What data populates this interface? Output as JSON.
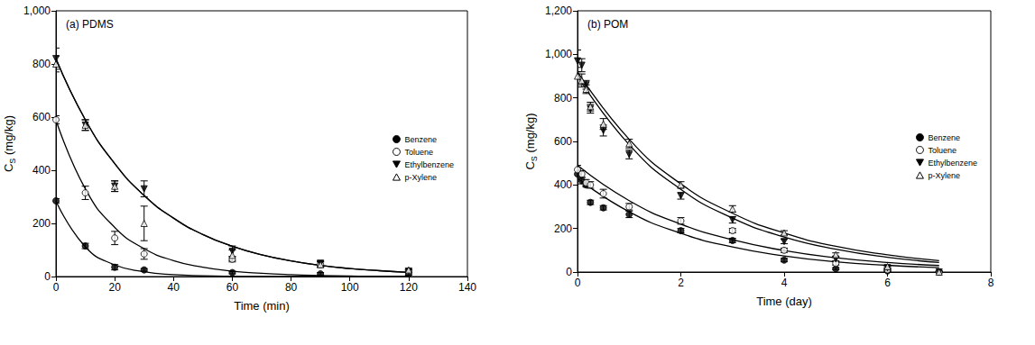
{
  "chart_data": [
    {
      "type": "scatter",
      "title": "(a) PDMS",
      "xlabel": "Time (min)",
      "ylabel": {
        "text": "CS (mg/kg)",
        "subscript": "S"
      },
      "xlim": [
        0,
        140
      ],
      "xticks": [
        0,
        20,
        40,
        60,
        80,
        100,
        120,
        140
      ],
      "ylim": [
        0,
        1000
      ],
      "yticks": [
        0,
        200,
        400,
        600,
        800,
        1000
      ],
      "legend": "right",
      "x": [
        0,
        10,
        20,
        30,
        60,
        90,
        120
      ],
      "fit_x": [
        0,
        10,
        20,
        30,
        40,
        50,
        60,
        70,
        80,
        90,
        100,
        110,
        120
      ],
      "series": [
        {
          "name": "Benzene",
          "color": "#000000",
          "marker": "circle",
          "values": [
            285,
            115,
            35,
            25,
            15,
            10,
            10
          ],
          "errors": [
            8,
            10,
            10,
            5,
            5,
            5,
            5
          ],
          "fit": [
            285,
            112,
            44,
            18,
            7,
            3,
            1,
            0,
            0,
            0,
            0,
            0,
            0
          ]
        },
        {
          "name": "Toluene",
          "color": "#000000",
          "marker": "open_circle",
          "values": [
            590,
            315,
            145,
            85,
            65,
            45,
            20
          ],
          "errors": [
            15,
            25,
            25,
            20,
            10,
            10,
            5
          ],
          "fit": [
            590,
            330,
            185,
            105,
            60,
            35,
            20,
            12,
            7,
            4,
            2,
            1,
            1
          ]
        },
        {
          "name": "Ethylbenzene",
          "color": "#000000",
          "marker": "triangle_down",
          "values": [
            820,
            570,
            340,
            330,
            95,
            50,
            20
          ],
          "errors": [
            40,
            20,
            20,
            30,
            20,
            10,
            5
          ],
          "fit": [
            820,
            590,
            425,
            305,
            220,
            158,
            114,
            82,
            59,
            42,
            30,
            22,
            16
          ]
        },
        {
          "name": "p-Xylene",
          "color": "#000000",
          "marker": "open_triangle",
          "values": [
            800,
            570,
            340,
            200,
            80,
            45,
            25
          ],
          "errors": [
            30,
            20,
            20,
            65,
            20,
            10,
            5
          ],
          "fit": [
            820,
            590,
            425,
            305,
            220,
            158,
            114,
            82,
            59,
            42,
            30,
            22,
            16
          ]
        }
      ]
    },
    {
      "type": "scatter",
      "title": "(b) POM",
      "xlabel": "Time (day)",
      "ylabel": {
        "text": "CS (mg/kg)",
        "subscript": "S"
      },
      "xlim": [
        0,
        8
      ],
      "xticks": [
        0,
        2,
        4,
        6,
        8
      ],
      "ylim": [
        0,
        1200
      ],
      "yticks": [
        0,
        200,
        400,
        600,
        800,
        1000,
        1200
      ],
      "legend": "right",
      "x": [
        0,
        0.083,
        0.167,
        0.25,
        0.5,
        1,
        2,
        3,
        4,
        5,
        6,
        7
      ],
      "fit_x": [
        0,
        1,
        2,
        3,
        4,
        5,
        6,
        7
      ],
      "series": [
        {
          "name": "Benzene",
          "color": "#000000",
          "marker": "circle",
          "values": [
            450,
            420,
            400,
            320,
            295,
            265,
            190,
            145,
            55,
            15,
            5,
            0
          ],
          "errors": [
            20,
            15,
            10,
            10,
            10,
            15,
            10,
            10,
            8,
            5,
            3,
            3
          ],
          "fit": [
            430,
            277,
            178,
            115,
            74,
            47,
            31,
            20
          ]
        },
        {
          "name": "Toluene",
          "color": "#000000",
          "marker": "open_circle",
          "values": [
            470,
            450,
            410,
            400,
            360,
            300,
            235,
            190,
            100,
            40,
            10,
            0
          ],
          "errors": [
            20,
            15,
            15,
            15,
            20,
            15,
            15,
            10,
            10,
            8,
            5,
            3
          ],
          "fit": [
            490,
            328,
            220,
            148,
            99,
            66,
            44,
            30
          ]
        },
        {
          "name": "Ethylbenzene",
          "color": "#000000",
          "marker": "triangle_down",
          "values": [
            970,
            950,
            860,
            750,
            650,
            540,
            350,
            240,
            140,
            60,
            20,
            0
          ],
          "errors": [
            50,
            30,
            20,
            20,
            25,
            20,
            15,
            15,
            10,
            8,
            5,
            3
          ],
          "fit": [
            900,
            585,
            380,
            248,
            161,
            105,
            68,
            44
          ]
        },
        {
          "name": "p-Xylene",
          "color": "#000000",
          "marker": "open_triangle",
          "values": [
            900,
            880,
            840,
            760,
            680,
            590,
            400,
            290,
            180,
            80,
            25,
            0
          ],
          "errors": [
            40,
            30,
            20,
            20,
            25,
            20,
            15,
            15,
            10,
            8,
            5,
            3
          ],
          "fit": [
            920,
            610,
            405,
            270,
            179,
            118,
            79,
            52
          ]
        }
      ]
    }
  ]
}
